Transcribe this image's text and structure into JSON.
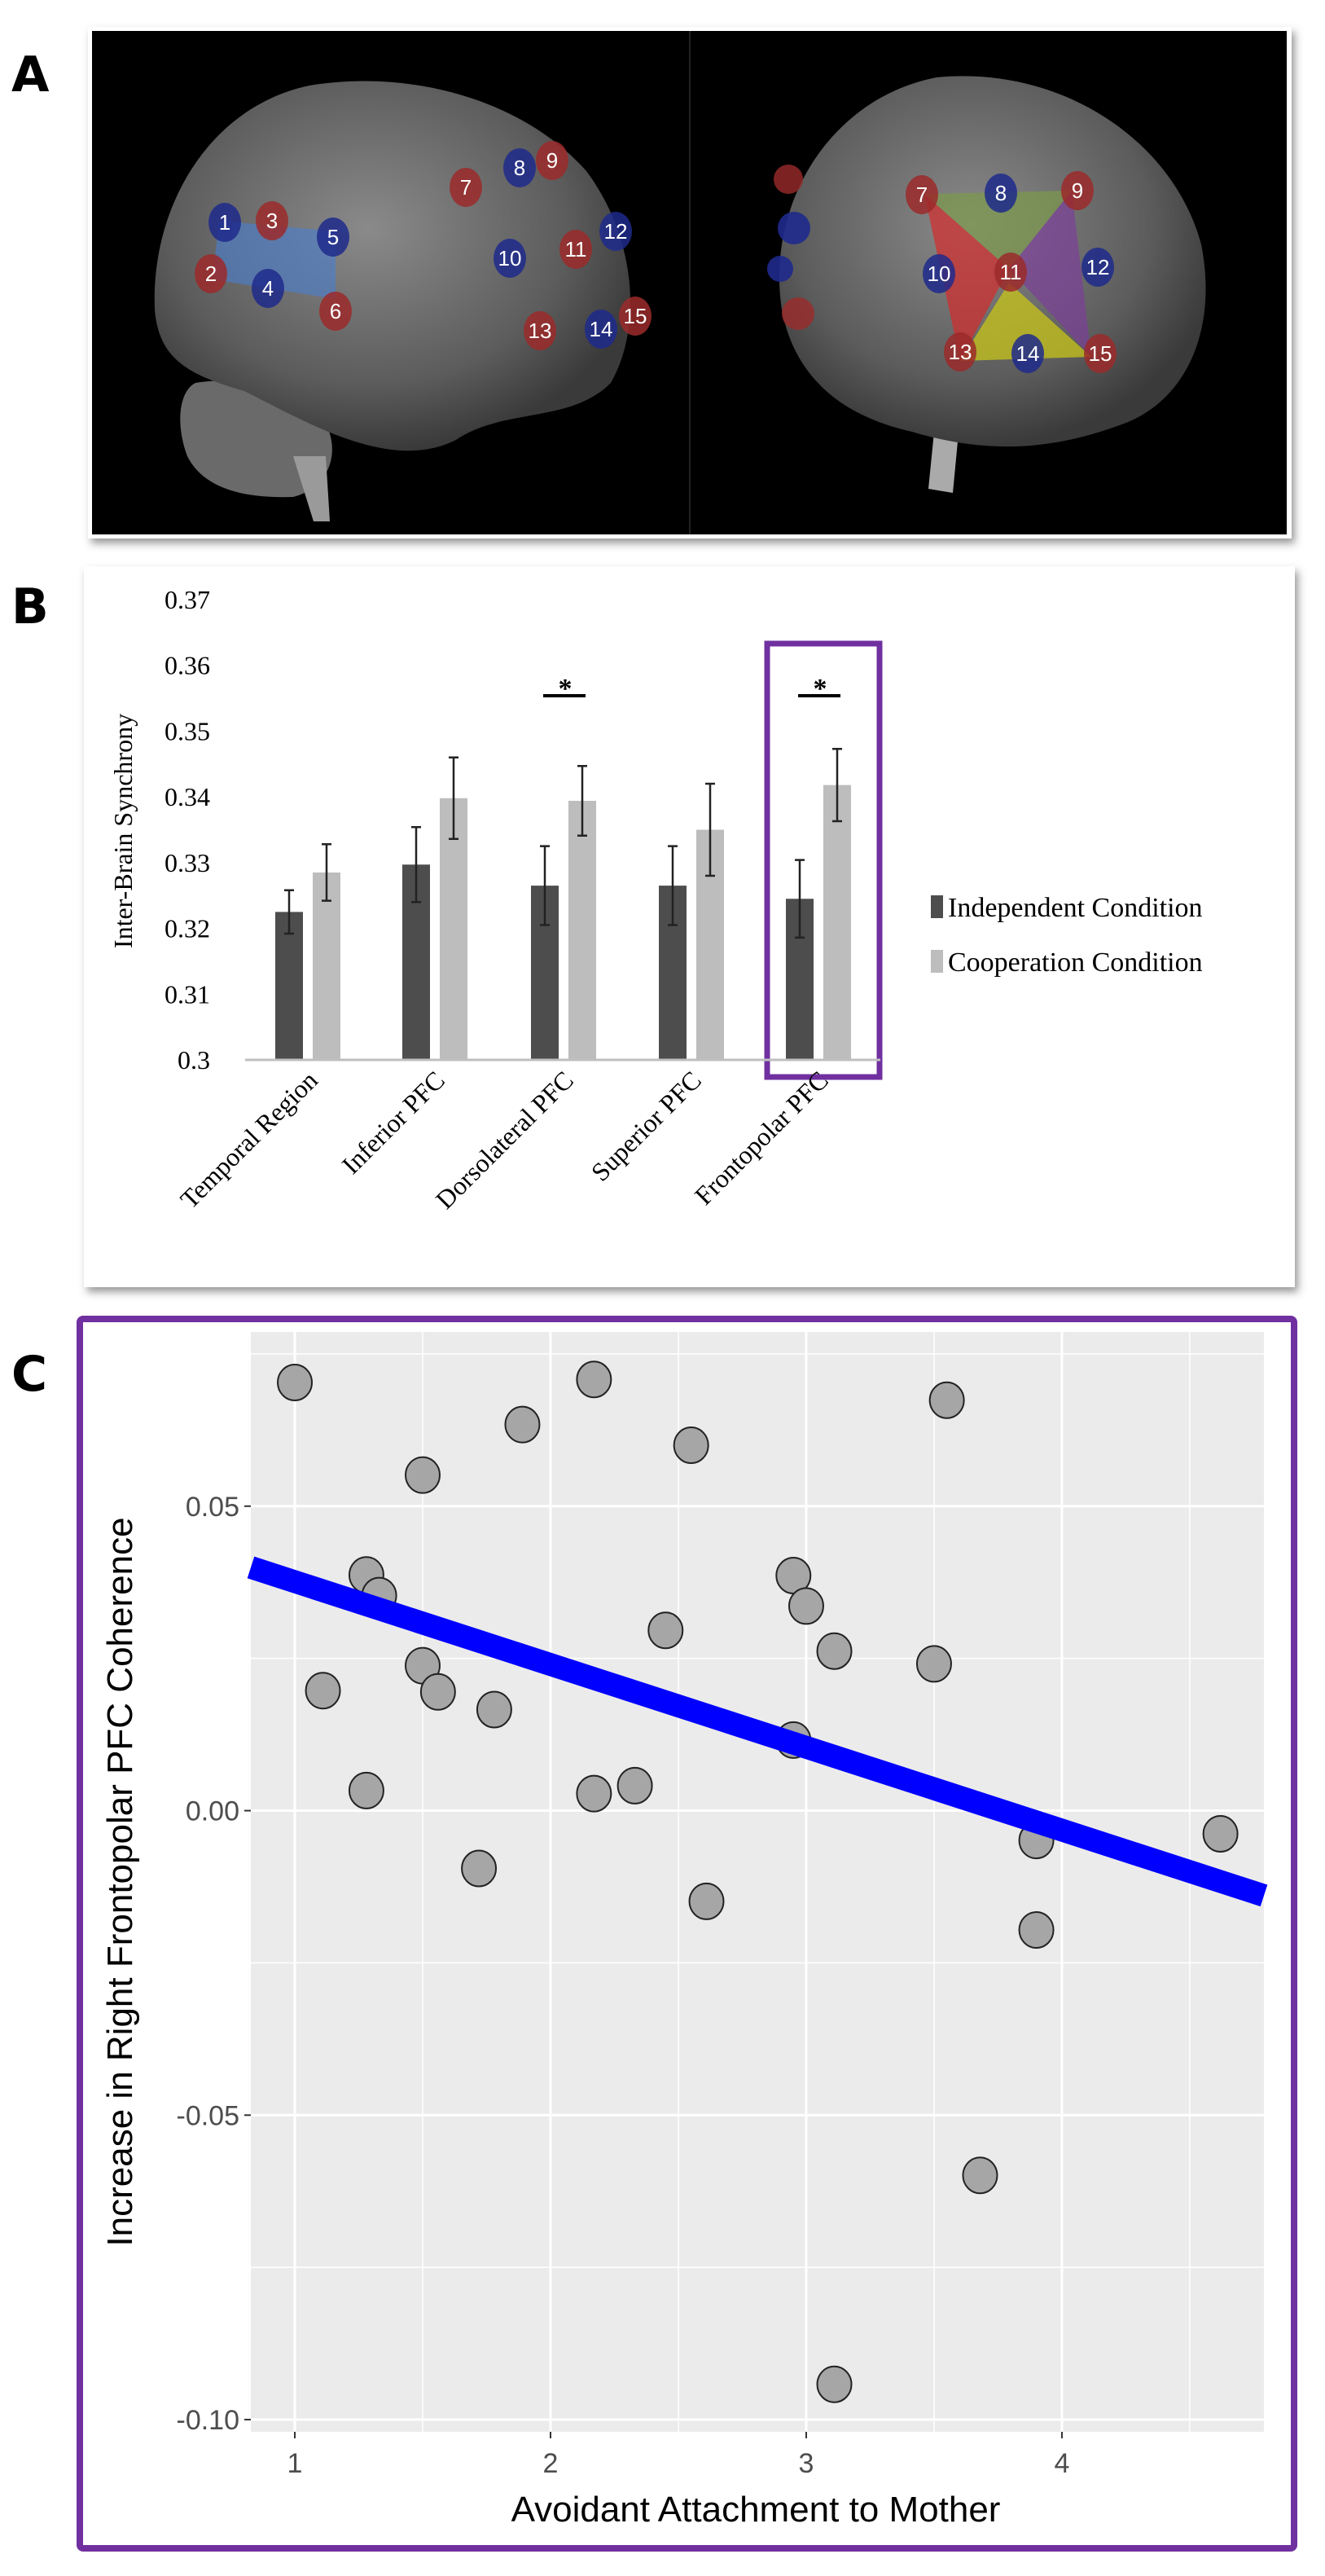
{
  "panels": {
    "a": "A",
    "b": "B",
    "c": "C"
  },
  "brain_panel": {
    "left_electrodes": [
      {
        "n": "1",
        "color": "blue"
      },
      {
        "n": "2",
        "color": "red"
      },
      {
        "n": "3",
        "color": "red"
      },
      {
        "n": "4",
        "color": "blue"
      },
      {
        "n": "5",
        "color": "blue"
      },
      {
        "n": "6",
        "color": "red"
      },
      {
        "n": "7",
        "color": "red"
      },
      {
        "n": "8",
        "color": "blue"
      },
      {
        "n": "9",
        "color": "red"
      },
      {
        "n": "10",
        "color": "blue"
      },
      {
        "n": "11",
        "color": "red"
      },
      {
        "n": "12",
        "color": "blue"
      },
      {
        "n": "13",
        "color": "red"
      },
      {
        "n": "14",
        "color": "blue"
      },
      {
        "n": "15",
        "color": "red"
      }
    ],
    "right_electrodes": [
      {
        "n": "7",
        "color": "red"
      },
      {
        "n": "8",
        "color": "blue"
      },
      {
        "n": "9",
        "color": "red"
      },
      {
        "n": "10",
        "color": "blue"
      },
      {
        "n": "11",
        "color": "red"
      },
      {
        "n": "12",
        "color": "blue"
      },
      {
        "n": "13",
        "color": "red"
      },
      {
        "n": "14",
        "color": "blue"
      },
      {
        "n": "15",
        "color": "red"
      }
    ],
    "colors": {
      "red": "#9b2a2a",
      "blue": "#1f2a8c",
      "region_left": "#4a7fd0",
      "green": "#7a9a4a",
      "purple": "#7b3f98",
      "red_region": "#d42b2b",
      "yellow": "#c8c41a"
    }
  },
  "chart_data": [
    {
      "type": "bar",
      "ylabel": "Inter-Brain Synchrony",
      "xlabel": "",
      "ylim": [
        0.3,
        0.37
      ],
      "yticks": [
        "0.3",
        "0.31",
        "0.32",
        "0.33",
        "0.34",
        "0.35",
        "0.36",
        "0.37"
      ],
      "categories": [
        "Temporal Region",
        "Inferior PFC",
        "Dorsolateral PFC",
        "Superior PFC",
        "Frontopolar PFC"
      ],
      "series": [
        {
          "name": "Independent Condition",
          "color": "#4d4d4d",
          "values": [
            0.3225,
            0.3297,
            0.3265,
            0.3265,
            0.3245
          ],
          "errors": [
            0.0033,
            0.0057,
            0.006,
            0.006,
            0.0059
          ]
        },
        {
          "name": "Cooperation Condition",
          "color": "#bdbdbd",
          "values": [
            0.3285,
            0.3398,
            0.3394,
            0.335,
            0.3418
          ],
          "errors": [
            0.0043,
            0.0062,
            0.0053,
            0.007,
            0.0055
          ]
        }
      ],
      "significance": [
        {
          "category": "Dorsolateral PFC",
          "label": "*"
        },
        {
          "category": "Frontopolar PFC",
          "label": "*"
        }
      ],
      "highlight": {
        "category": "Frontopolar PFC",
        "color": "#7030a0"
      },
      "legend": "right",
      "grid": false
    },
    {
      "type": "scatter",
      "xlabel": "Avoidant Attachment to Mother",
      "ylabel": "Increase in Right Frontopolar PFC Coherence",
      "xlim": [
        0.828,
        4.79
      ],
      "ylim": [
        -0.102,
        0.0786
      ],
      "xticks": [
        {
          "v": 1,
          "label": "1"
        },
        {
          "v": 2,
          "label": "2"
        },
        {
          "v": 3,
          "label": "3"
        },
        {
          "v": 4,
          "label": "4"
        }
      ],
      "yticks": [
        {
          "v": -0.1,
          "label": "-0.10"
        },
        {
          "v": -0.05,
          "label": "-0.05"
        },
        {
          "v": 0,
          "label": "0.00"
        },
        {
          "v": 0.05,
          "label": "0.05"
        }
      ],
      "points": [
        [
          1.0,
          0.0703
        ],
        [
          2.17,
          0.0708
        ],
        [
          3.55,
          0.0674
        ],
        [
          1.89,
          0.0634
        ],
        [
          2.55,
          0.06
        ],
        [
          1.5,
          0.0551
        ],
        [
          1.28,
          0.0387
        ],
        [
          1.33,
          0.0353
        ],
        [
          2.95,
          0.0386
        ],
        [
          3.0,
          0.0336
        ],
        [
          2.45,
          0.0296
        ],
        [
          3.11,
          0.0262
        ],
        [
          3.5,
          0.0241
        ],
        [
          1.5,
          0.0238
        ],
        [
          1.11,
          0.0197
        ],
        [
          1.56,
          0.0195
        ],
        [
          1.78,
          0.0166
        ],
        [
          2.95,
          0.0116
        ],
        [
          1.28,
          0.0033
        ],
        [
          2.17,
          0.0028
        ],
        [
          2.33,
          0.0041
        ],
        [
          1.72,
          -0.0095
        ],
        [
          2.61,
          -0.0149
        ],
        [
          3.9,
          -0.0049
        ],
        [
          4.62,
          -0.0038
        ],
        [
          3.9,
          -0.0196
        ],
        [
          3.68,
          -0.0599
        ],
        [
          3.11,
          -0.0942
        ]
      ],
      "fit_line": {
        "intercept": 0.0512,
        "slope": -0.0136,
        "color": "#0000ff"
      },
      "point_color": "#a6a6a6",
      "background": "#ebebeb",
      "grid": true,
      "frame_color": "#7030a0"
    }
  ]
}
